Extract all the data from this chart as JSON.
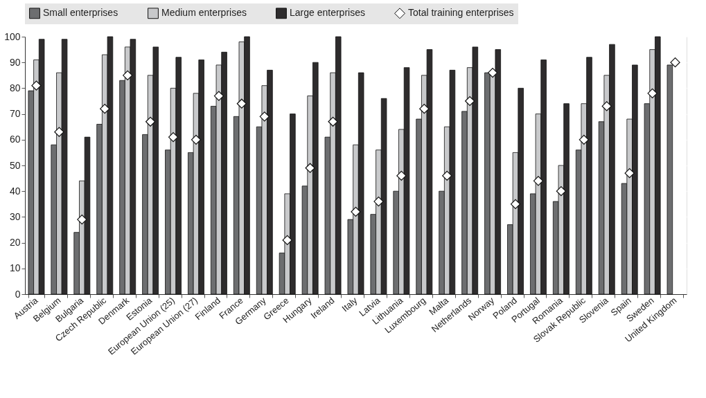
{
  "chart_data": {
    "type": "bar",
    "categories": [
      "Austria",
      "Belgium",
      "Bulgaria",
      "Czech Republic",
      "Denmark",
      "Estonia",
      "European Union (25)",
      "European Union (27)",
      "Finland",
      "France",
      "Germany",
      "Greece",
      "Hungary",
      "Ireland",
      "Italy",
      "Latvia",
      "Lithuania",
      "Luxembourg",
      "Malta",
      "Netherlands",
      "Norway",
      "Poland",
      "Portugal",
      "Romania",
      "Slovak Republic",
      "Slovenia",
      "Spain",
      "Sweden",
      "United Kingdom"
    ],
    "series": [
      {
        "name": "Small enterprises",
        "color": "#6d6e70",
        "values": [
          79,
          58,
          24,
          66,
          83,
          62,
          56,
          55,
          73,
          69,
          65,
          16,
          42,
          61,
          29,
          31,
          40,
          68,
          40,
          71,
          86,
          27,
          39,
          36,
          56,
          67,
          43,
          74,
          89
        ]
      },
      {
        "name": "Medium enterprises",
        "color": "#c8c9cb",
        "values": [
          91,
          86,
          44,
          93,
          96,
          85,
          80,
          78,
          89,
          98,
          81,
          39,
          77,
          86,
          58,
          56,
          64,
          85,
          65,
          88,
          86,
          55,
          70,
          50,
          74,
          85,
          68,
          95,
          null
        ]
      },
      {
        "name": "Large enterprises",
        "color": "#2e2c2d",
        "values": [
          99,
          99,
          61,
          100,
          99,
          96,
          92,
          91,
          94,
          100,
          87,
          70,
          90,
          100,
          86,
          76,
          88,
          95,
          87,
          96,
          95,
          80,
          91,
          74,
          92,
          97,
          89,
          100,
          null
        ]
      },
      {
        "name": "Total training enterprises",
        "type": "scatter",
        "color": "#ffffff",
        "values": [
          81,
          63,
          29,
          72,
          85,
          67,
          61,
          60,
          77,
          74,
          69,
          21,
          49,
          67,
          32,
          36,
          46,
          72,
          46,
          75,
          86,
          35,
          44,
          40,
          60,
          73,
          47,
          78,
          90
        ]
      }
    ],
    "marker": "diamond",
    "ylim": [
      0,
      100
    ],
    "yticks": [
      0,
      10,
      20,
      30,
      40,
      50,
      60,
      70,
      80,
      90,
      100
    ],
    "grid": true,
    "legend": "top"
  }
}
